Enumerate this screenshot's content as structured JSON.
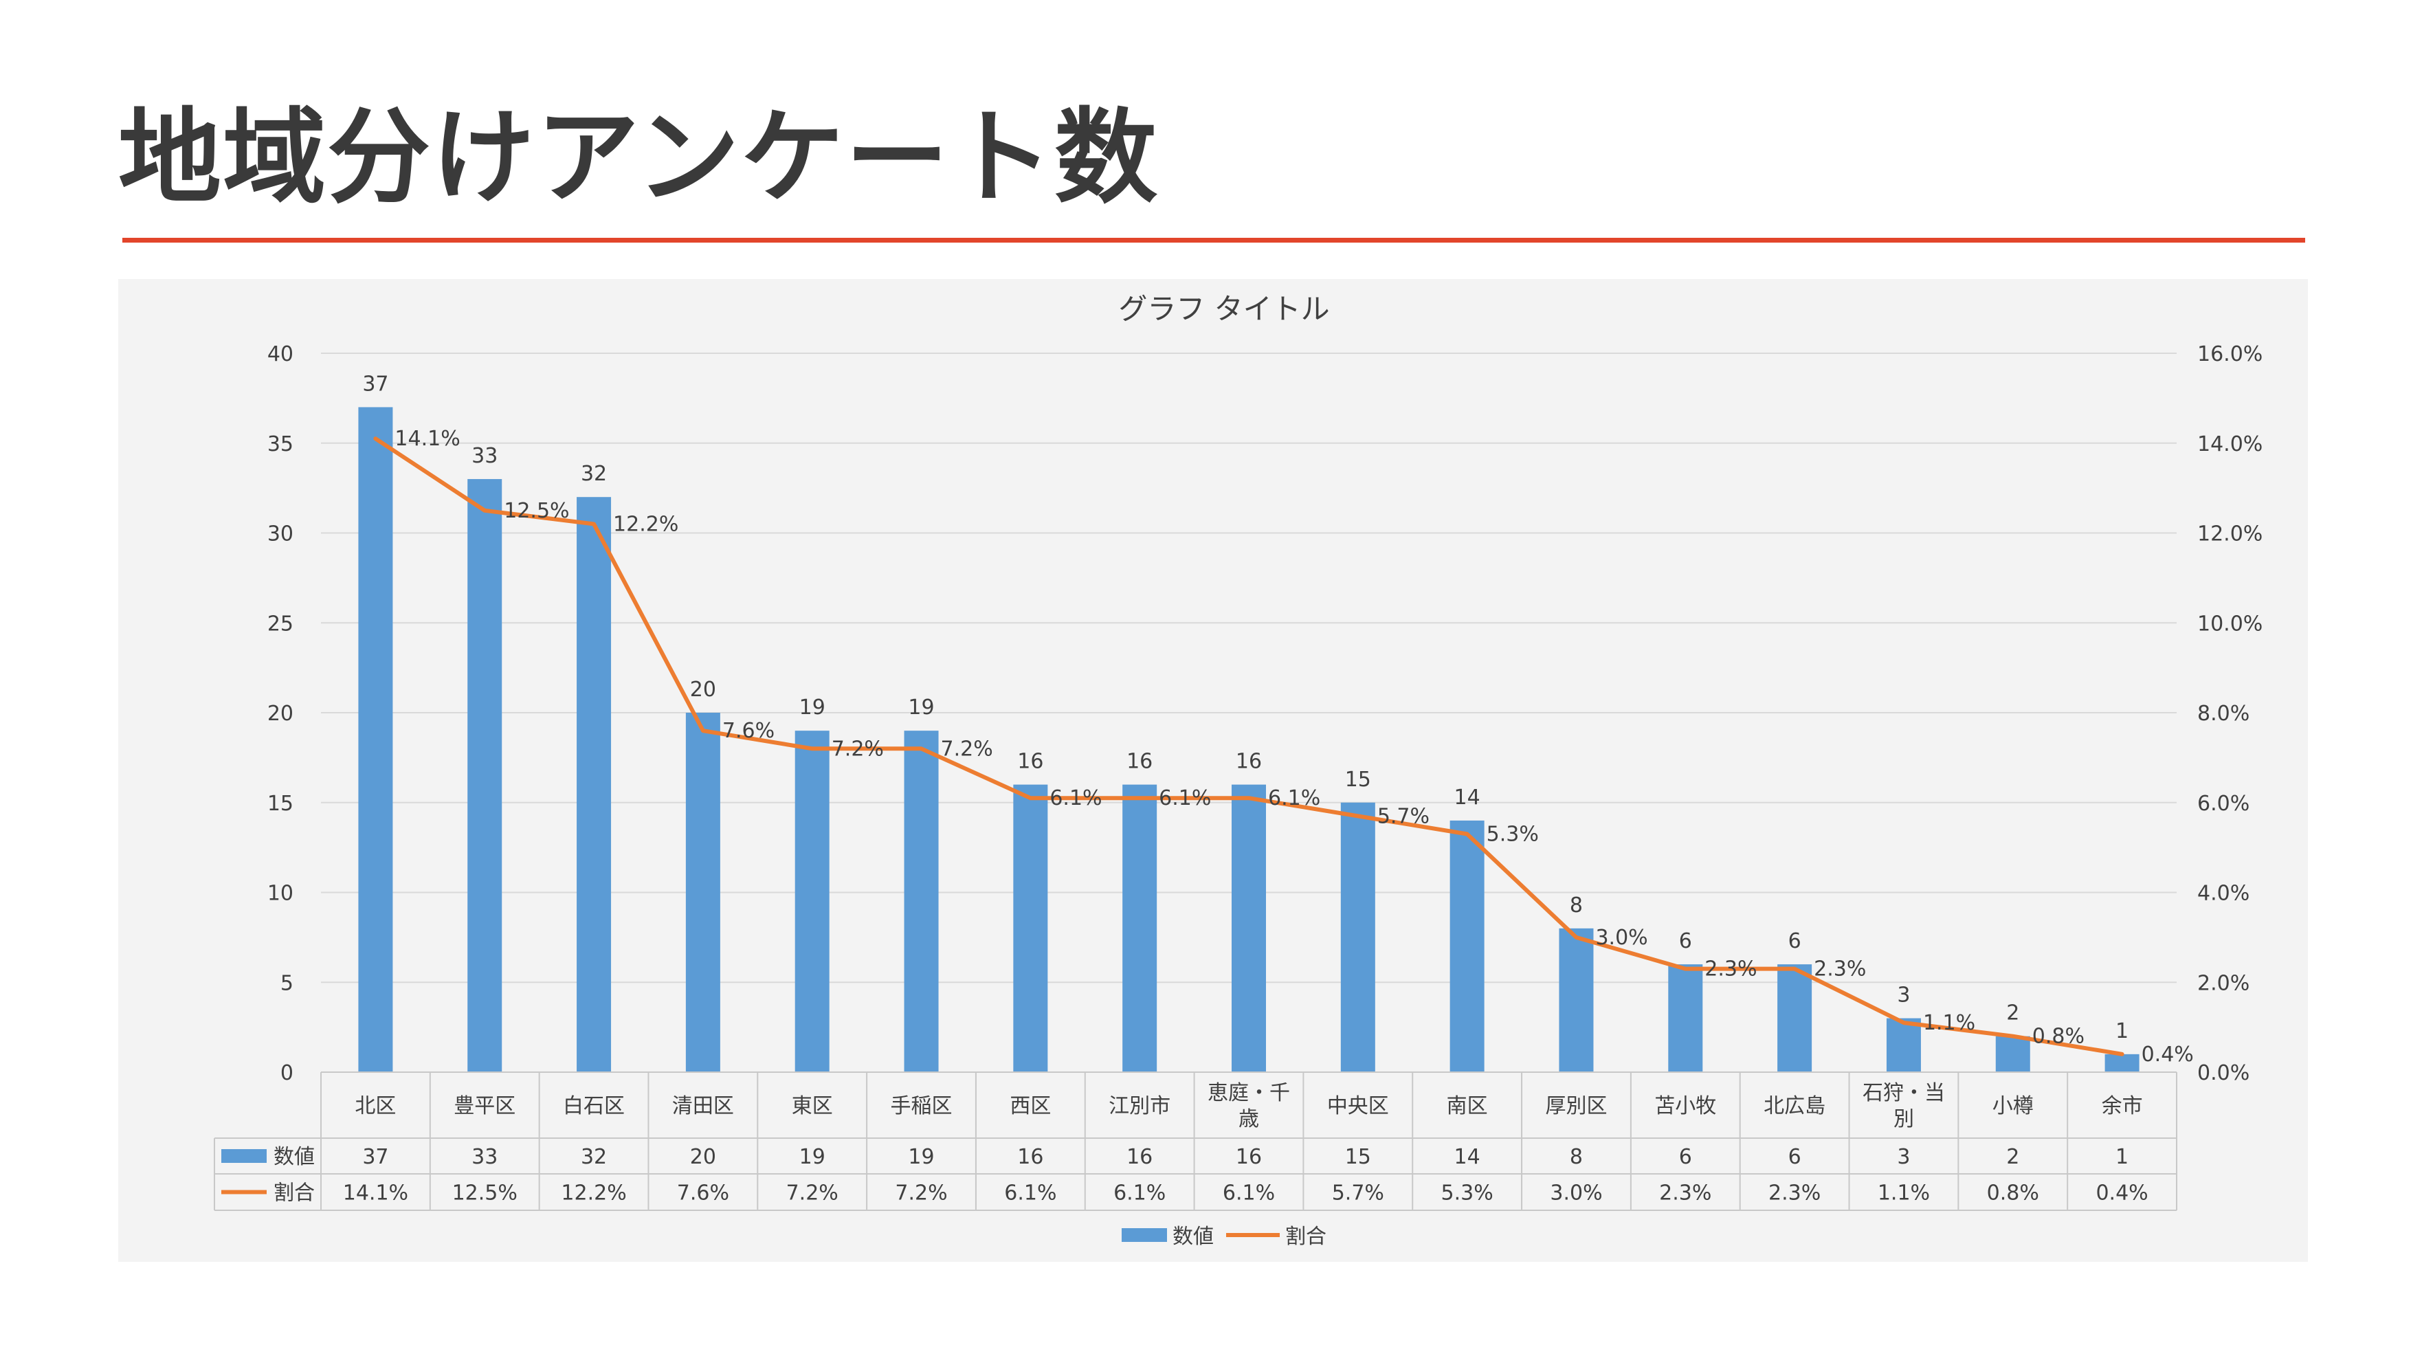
{
  "slide": {
    "title": "地域分けアンケート数"
  },
  "colors": {
    "accent_rule": "#e2452b",
    "bar": "#5b9bd5",
    "line": "#ed7d31",
    "panel_bg": "#f3f3f3",
    "grid": "#d9d9d9",
    "text": "#404040"
  },
  "chart_data": {
    "type": "bar",
    "title": "グラフ タイトル",
    "categories": [
      "北区",
      "豊平区",
      "白石区",
      "清田区",
      "東区",
      "手稲区",
      "西区",
      "江別市",
      "恵庭・千歳",
      "中央区",
      "南区",
      "厚別区",
      "苫小牧",
      "北広島",
      "石狩・当別",
      "小樽",
      "余市"
    ],
    "category_display": [
      [
        "北区"
      ],
      [
        "豊平区"
      ],
      [
        "白石区"
      ],
      [
        "清田区"
      ],
      [
        "東区"
      ],
      [
        "手稲区"
      ],
      [
        "西区"
      ],
      [
        "江別市"
      ],
      [
        "恵庭・千",
        "歳"
      ],
      [
        "中央区"
      ],
      [
        "南区"
      ],
      [
        "厚別区"
      ],
      [
        "苫小牧"
      ],
      [
        "北広島"
      ],
      [
        "石狩・当",
        "別"
      ],
      [
        "小樽"
      ],
      [
        "余市"
      ]
    ],
    "series": [
      {
        "name": "数値",
        "kind": "bar",
        "axis": "left",
        "values": [
          37,
          33,
          32,
          20,
          19,
          19,
          16,
          16,
          16,
          15,
          14,
          8,
          6,
          6,
          3,
          2,
          1
        ],
        "labels": [
          "37",
          "33",
          "32",
          "20",
          "19",
          "19",
          "16",
          "16",
          "16",
          "15",
          "14",
          "8",
          "6",
          "6",
          "3",
          "2",
          "1"
        ]
      },
      {
        "name": "割合",
        "kind": "line",
        "axis": "right",
        "values": [
          14.1,
          12.5,
          12.2,
          7.6,
          7.2,
          7.2,
          6.1,
          6.1,
          6.1,
          5.7,
          5.3,
          3.0,
          2.3,
          2.3,
          1.1,
          0.8,
          0.4
        ],
        "labels": [
          "14.1%",
          "12.5%",
          "12.2%",
          "7.6%",
          "7.2%",
          "7.2%",
          "6.1%",
          "6.1%",
          "6.1%",
          "5.7%",
          "5.3%",
          "3.0%",
          "2.3%",
          "2.3%",
          "1.1%",
          "0.8%",
          "0.4%"
        ]
      }
    ],
    "y_left": {
      "min": 0,
      "max": 40,
      "ticks": [
        0,
        5,
        10,
        15,
        20,
        25,
        30,
        35,
        40
      ],
      "tick_labels": [
        "0",
        "5",
        "10",
        "15",
        "20",
        "25",
        "30",
        "35",
        "40"
      ]
    },
    "y_right": {
      "min": 0,
      "max": 16,
      "ticks": [
        0,
        2,
        4,
        6,
        8,
        10,
        12,
        14,
        16
      ],
      "tick_labels": [
        "0.0%",
        "2.0%",
        "4.0%",
        "6.0%",
        "8.0%",
        "10.0%",
        "12.0%",
        "14.0%",
        "16.0%"
      ]
    },
    "grid": true,
    "data_table": true,
    "legend": "bottom"
  }
}
